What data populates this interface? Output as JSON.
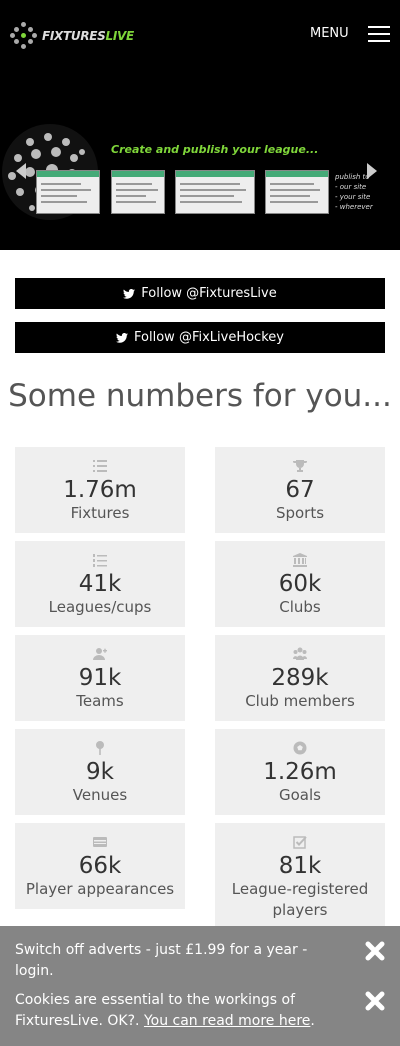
{
  "header": {
    "logo_text_a": "FIXTURES",
    "logo_text_b": "LIVE",
    "menu_label": "MENU",
    "slogan": "Create and publish your league...",
    "side_lines": [
      "publish to",
      "- our site",
      "- your site",
      "- wherever"
    ]
  },
  "follow": [
    {
      "label": "Follow @FixturesLive"
    },
    {
      "label": "Follow @FixLiveHockey"
    }
  ],
  "numbers": {
    "title": "Some numbers for you...",
    "stats": [
      {
        "value": "1.76m",
        "label": "Fixtures",
        "icon": "list-icon"
      },
      {
        "value": "67",
        "label": "Sports",
        "icon": "trophy-icon"
      },
      {
        "value": "41k",
        "label": "Leagues/cups",
        "icon": "ordered-list-icon"
      },
      {
        "value": "60k",
        "label": "Clubs",
        "icon": "building-icon"
      },
      {
        "value": "91k",
        "label": "Teams",
        "icon": "add-user-icon"
      },
      {
        "value": "289k",
        "label": "Club members",
        "icon": "users-icon"
      },
      {
        "value": "9k",
        "label": "Venues",
        "icon": "map-pin-icon"
      },
      {
        "value": "1.26m",
        "label": "Goals",
        "icon": "football-icon"
      },
      {
        "value": "66k",
        "label": "Player appearances",
        "icon": "card-icon"
      },
      {
        "value": "81k",
        "label": "League-registered players",
        "icon": "check-square-icon"
      }
    ]
  },
  "banner": {
    "adverts_text": "Switch off adverts - just £1.99 for a year - login.",
    "cookies_text": "Cookies are essential to the workings of FixturesLive. OK?.",
    "cookies_link": "You can read more here",
    "cookies_end": "."
  },
  "colors": {
    "brand_green": "#7fd63a",
    "card_bg": "#efefef",
    "banner_bg": "#858585"
  }
}
